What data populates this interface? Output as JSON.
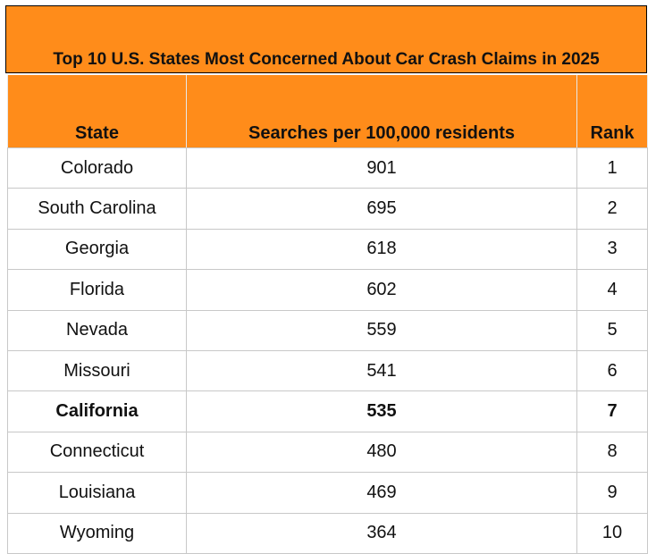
{
  "title": "Top 10 U.S. States Most Concerned About Car Crash Claims in 2025",
  "table": {
    "header": [
      "State",
      "Searches per 100,000 residents",
      "Rank"
    ],
    "rows": [
      [
        "Colorado",
        901,
        1
      ],
      [
        "South Carolina",
        695,
        2
      ],
      [
        "Georgia",
        618,
        3
      ],
      [
        "Florida",
        602,
        4
      ],
      [
        "Nevada",
        559,
        5
      ],
      [
        "Missouri",
        541,
        6
      ],
      [
        "California",
        535,
        7
      ],
      [
        "Connecticut",
        480,
        8
      ],
      [
        "Louisiana",
        469,
        9
      ],
      [
        "Wyoming",
        364,
        10
      ]
    ]
  }
}
